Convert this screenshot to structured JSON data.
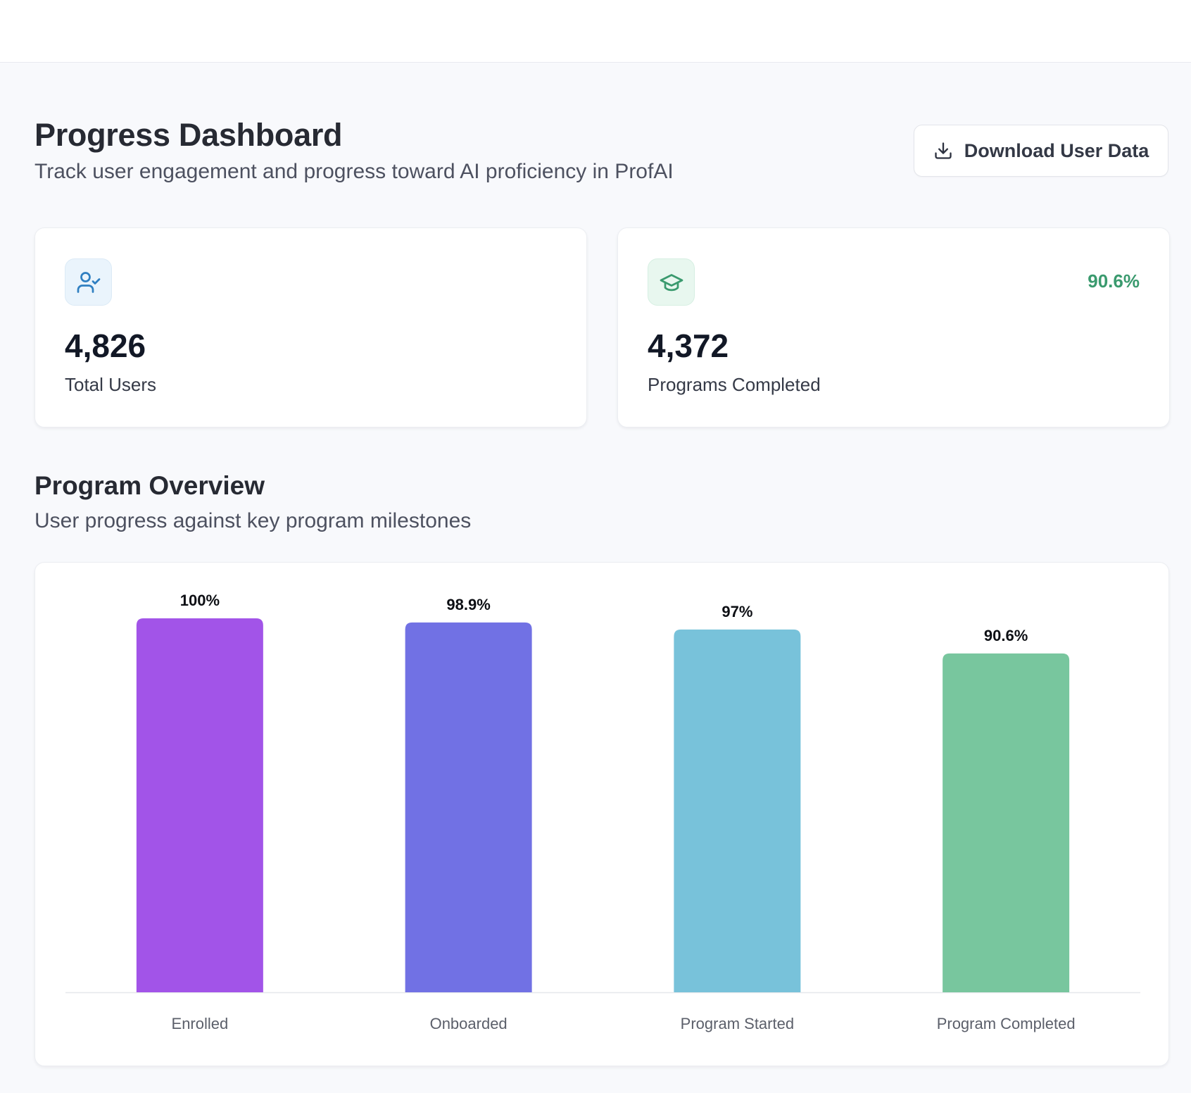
{
  "header": {
    "title": "Progress Dashboard",
    "subtitle": "Track user engagement and progress toward AI proficiency in ProfAI",
    "download_label": "Download User Data",
    "download_icon": "download-icon"
  },
  "stats": {
    "total_users": {
      "icon": "user-check-icon",
      "value": "4,826",
      "label": "Total Users",
      "accent": "#2f7fc1"
    },
    "programs_completed": {
      "icon": "graduation-cap-icon",
      "value": "4,372",
      "label": "Programs Completed",
      "percent": "90.6%",
      "accent": "#3a9a6e"
    }
  },
  "overview": {
    "title": "Program Overview",
    "subtitle": "User progress against key program milestones"
  },
  "chart_data": {
    "type": "bar",
    "categories": [
      "Enrolled",
      "Onboarded",
      "Program Started",
      "Program Completed"
    ],
    "values": [
      100,
      98.9,
      97,
      90.6
    ],
    "value_labels": [
      "100%",
      "98.9%",
      "97%",
      "90.6%"
    ],
    "colors": [
      "#a254e8",
      "#7171e4",
      "#78c2da",
      "#78c69e"
    ],
    "ylim": [
      0,
      100
    ],
    "grid": false,
    "xlabel": "",
    "ylabel": ""
  }
}
